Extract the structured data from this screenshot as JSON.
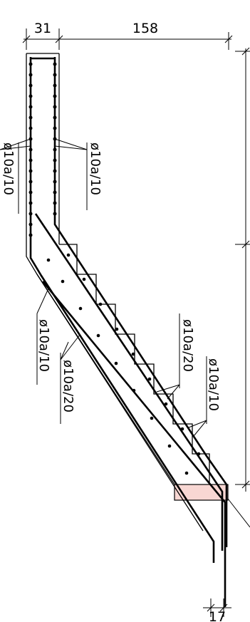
{
  "dimensions": {
    "top_wall": "31",
    "top_span": "158",
    "bottom": "17"
  },
  "rebar_labels": {
    "wall_left": "ø10a/10",
    "wall_right": "ø10a/10",
    "slab_bottom": "ø10a/10",
    "slab_top": "ø10a/20",
    "steps_top": "ø10a/20",
    "steps_right": "ø10a/10"
  },
  "colors": {
    "line": "#000000",
    "highlight_fill": "#f8d7d3",
    "highlight_stroke": "#000000"
  }
}
